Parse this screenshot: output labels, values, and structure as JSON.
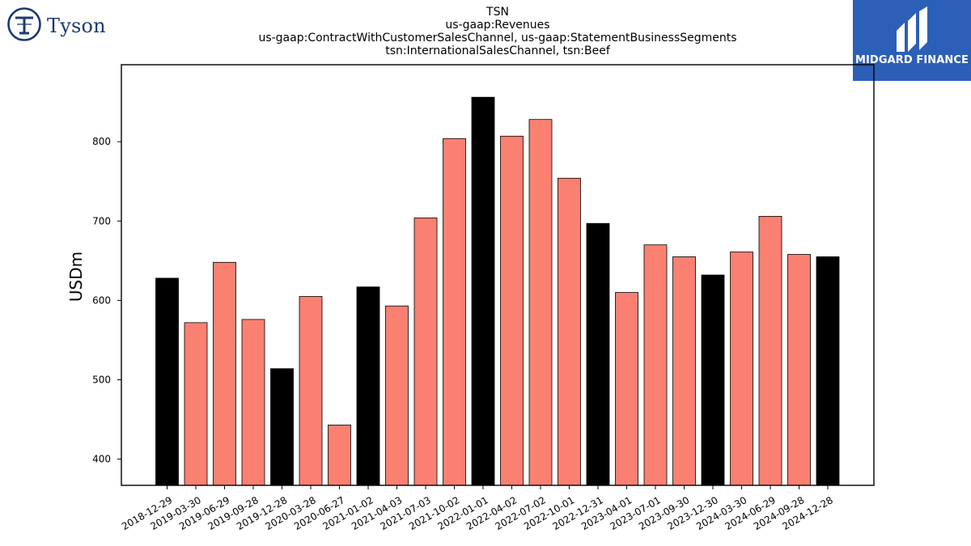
{
  "logos": {
    "left": {
      "name": "Tyson",
      "icon": "tyson-emblem-icon"
    },
    "right": {
      "name": "MIDGARD FINANCE",
      "icon": "midgard-mark-icon",
      "background": "#2c5fb7"
    }
  },
  "chart_data": {
    "type": "bar",
    "title": "TSN",
    "subtitle_lines": [
      "us-gaap:Revenues",
      "us-gaap:ContractWithCustomerSalesChannel, us-gaap:StatementBusinessSegments",
      "tsn:InternationalSalesChannel, tsn:Beef"
    ],
    "xlabel": "",
    "ylabel": "USDm",
    "ylim": [
      367,
      897
    ],
    "yticks": [
      400,
      500,
      600,
      700,
      800
    ],
    "grid": false,
    "colors": {
      "quarter": "#fa8072",
      "fiscal_year_end": "#000000",
      "edge": "#000000"
    },
    "categories": [
      "2018-12-29",
      "2019-03-30",
      "2019-06-29",
      "2019-09-28",
      "2019-12-28",
      "2020-03-28",
      "2020-06-27",
      "2021-01-02",
      "2021-04-03",
      "2021-07-03",
      "2021-10-02",
      "2022-01-01",
      "2022-04-02",
      "2022-07-02",
      "2022-10-01",
      "2022-12-31",
      "2023-04-01",
      "2023-07-01",
      "2023-09-30",
      "2023-12-30",
      "2024-03-30",
      "2024-06-29",
      "2024-09-28",
      "2024-12-28"
    ],
    "values": [
      628,
      572,
      648,
      576,
      514,
      605,
      443,
      617,
      593,
      704,
      804,
      856,
      807,
      828,
      754,
      697,
      610,
      670,
      655,
      632,
      661,
      706,
      658,
      655
    ],
    "highlight": [
      true,
      false,
      false,
      false,
      true,
      false,
      false,
      true,
      false,
      false,
      false,
      true,
      false,
      false,
      false,
      true,
      false,
      false,
      false,
      true,
      false,
      false,
      false,
      true
    ]
  }
}
